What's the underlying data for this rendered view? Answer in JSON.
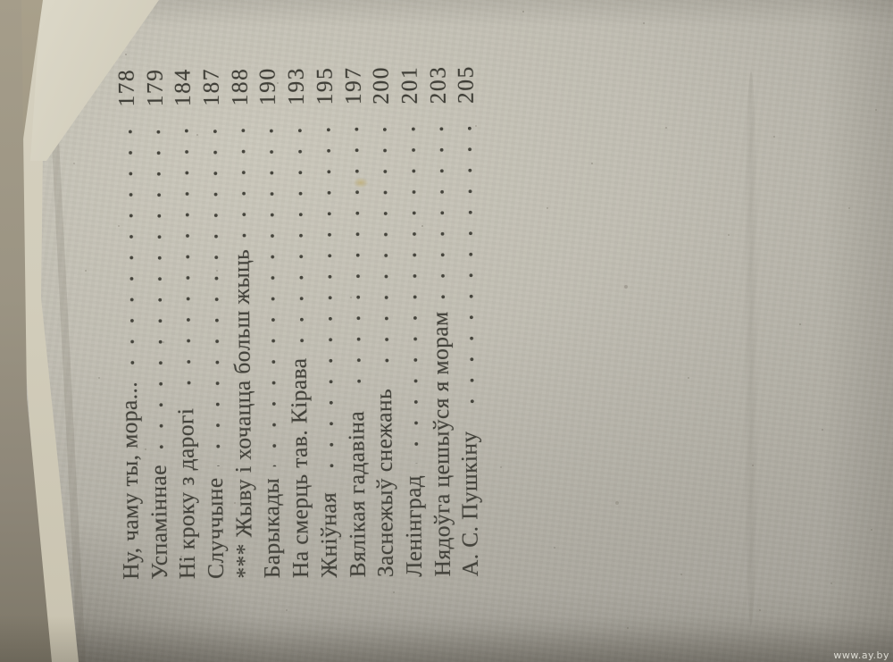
{
  "toc": {
    "entries": [
      {
        "title": "Ну, чаму ты, мора...",
        "page": "178"
      },
      {
        "title": "Успамiннае",
        "page": "179"
      },
      {
        "title": "Нi кроку з дарогi",
        "page": "184"
      },
      {
        "title": "Случчыне",
        "page": "187"
      },
      {
        "title": "*** Жыву i хочацца больш жыць",
        "page": "188"
      },
      {
        "title": "Барыкады",
        "page": "190"
      },
      {
        "title": "На смерць тав. Кiрава",
        "page": "193"
      },
      {
        "title": "Жнiўная",
        "page": "195"
      },
      {
        "title": "Вялiкая гадавiна",
        "page": "197"
      },
      {
        "title": "Заснежыў снежань",
        "page": "200"
      },
      {
        "title": "Ленiнград",
        "page": "201"
      },
      {
        "title": "Нядоўга цешыўся я морам",
        "page": "203"
      },
      {
        "title": "А. С. Пушкiну",
        "page": "205"
      }
    ]
  },
  "watermark": {
    "text": "www.ay.by"
  },
  "colors": {
    "paper": "#b6b3a9",
    "paper_light": "#cbc8bc",
    "edge_cream": "#d2cdbb",
    "edge_dark": "#8d8678",
    "ink": "#44433c",
    "watermark_text": "#e9e8e0",
    "stain": "#bba356"
  }
}
